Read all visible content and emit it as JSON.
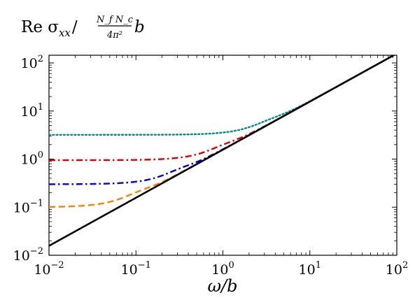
{
  "chart_data": {
    "type": "line",
    "title_parts": {
      "prefix": "Re σ",
      "subscript": "xx",
      "slash": "/",
      "numerator": "N_f N_c",
      "denominator": "4π²",
      "suffix": "b"
    },
    "title": "Re σ_xx / (N_f N_c / 4π²) b",
    "xlabel": "ω/b",
    "ylabel": "",
    "xscale": "log",
    "yscale": "log",
    "xlim": [
      0.01,
      100
    ],
    "ylim": [
      0.01,
      300
    ],
    "grid": false,
    "legend": "none",
    "x_tick_labels": [
      {
        "value": 0.01,
        "base": "10",
        "exp": "−2"
      },
      {
        "value": 0.1,
        "base": "10",
        "exp": "−1"
      },
      {
        "value": 1,
        "base": "10",
        "exp": "0"
      },
      {
        "value": 10,
        "base": "10",
        "exp": "1"
      },
      {
        "value": 100,
        "base": "10",
        "exp": "2"
      }
    ],
    "y_tick_labels": [
      {
        "value": 0.01,
        "base": "10",
        "exp": "−2"
      },
      {
        "value": 0.1,
        "base": "10",
        "exp": "−1"
      },
      {
        "value": 1,
        "base": "10",
        "exp": "0"
      },
      {
        "value": 10,
        "base": "10",
        "exp": "1"
      },
      {
        "value": 100,
        "base": "10",
        "exp": "2"
      }
    ],
    "series": [
      {
        "color": "#000000",
        "dash": "solid",
        "model": "linear",
        "plateau": 0,
        "bump": 0,
        "x": [
          0.01,
          0.1,
          1,
          10,
          100
        ],
        "values": [
          0.0157,
          0.157,
          1.57,
          15.7,
          157
        ]
      },
      {
        "color": "#ff8000",
        "dash": "dashed",
        "model": "smooth",
        "plateau": 0.1,
        "bump": 0.75,
        "x": [
          0.01,
          0.03,
          0.1,
          0.3,
          1,
          10,
          100
        ],
        "values": [
          0.1,
          0.1,
          0.13,
          0.5,
          1.4,
          15.7,
          157
        ]
      },
      {
        "color": "#0000e0",
        "dash": "dashdot",
        "model": "smooth",
        "plateau": 0.3,
        "bump": 0.8,
        "x": [
          0.01,
          0.1,
          0.3,
          1,
          3,
          10,
          100
        ],
        "values": [
          0.31,
          0.32,
          0.45,
          1.5,
          4.5,
          15.7,
          157
        ]
      },
      {
        "color": "#e00000",
        "dash": "dashdot",
        "model": "smooth",
        "plateau": 0.95,
        "bump": 0.7,
        "x": [
          0.01,
          0.1,
          0.3,
          1,
          3,
          10,
          100
        ],
        "values": [
          0.95,
          0.95,
          1.05,
          1.5,
          4.8,
          15.7,
          157
        ]
      },
      {
        "color": "#008b8b",
        "dash": "dotted",
        "model": "smooth",
        "plateau": 3.2,
        "bump": 0.6,
        "x": [
          0.01,
          0.1,
          1,
          2,
          3,
          10,
          100
        ],
        "values": [
          3.2,
          3.2,
          3.3,
          3.7,
          4.5,
          15.7,
          157
        ]
      }
    ]
  }
}
